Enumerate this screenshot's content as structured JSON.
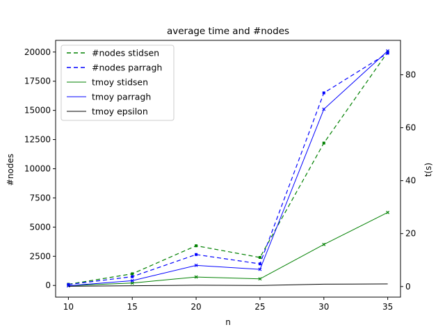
{
  "chart_data": {
    "type": "line",
    "title": "average time and #nodes",
    "xlabel": "n",
    "ylabel_left": "#nodes",
    "ylabel_right": "t(s)",
    "x": [
      10,
      15,
      20,
      25,
      30,
      35
    ],
    "xlim": [
      9,
      36
    ],
    "ylim_left": [
      -1000,
      21000
    ],
    "ylim_right": [
      -4,
      93
    ],
    "xticks": [
      10,
      15,
      20,
      25,
      30,
      35
    ],
    "yticks_left": [
      0,
      2500,
      5000,
      7500,
      10000,
      12500,
      15000,
      17500,
      20000
    ],
    "yticks_right": [
      0,
      20,
      40,
      60,
      80
    ],
    "legend_position": "upper-left",
    "grid": false,
    "series": [
      {
        "name": "#nodes stidsen",
        "axis": "left",
        "color": "#008000",
        "dash": "6,4",
        "width": 1.2,
        "marker": "square",
        "values": [
          100,
          1000,
          3400,
          2400,
          12200,
          20000
        ]
      },
      {
        "name": "#nodes parragh",
        "axis": "left",
        "color": "#0000ff",
        "dash": "6,4",
        "width": 1.2,
        "marker": "square",
        "values": [
          80,
          750,
          2650,
          1850,
          16500,
          19900
        ]
      },
      {
        "name": "tmoy stidsen",
        "axis": "right",
        "color": "#008000",
        "dash": "",
        "width": 1,
        "marker": "x",
        "values": [
          0.3,
          1.3,
          3.6,
          2.9,
          15.9,
          28.0
        ]
      },
      {
        "name": "tmoy parragh",
        "axis": "right",
        "color": "#0000ff",
        "dash": "",
        "width": 1,
        "marker": "x",
        "values": [
          0.3,
          2.2,
          8.0,
          6.5,
          67.0,
          89.0
        ]
      },
      {
        "name": "tmoy epsilon",
        "axis": "right",
        "color": "#000000",
        "dash": "",
        "width": 1,
        "marker": "none",
        "values": [
          0.1,
          0.3,
          0.5,
          0.4,
          0.9,
          1.0
        ]
      }
    ]
  }
}
